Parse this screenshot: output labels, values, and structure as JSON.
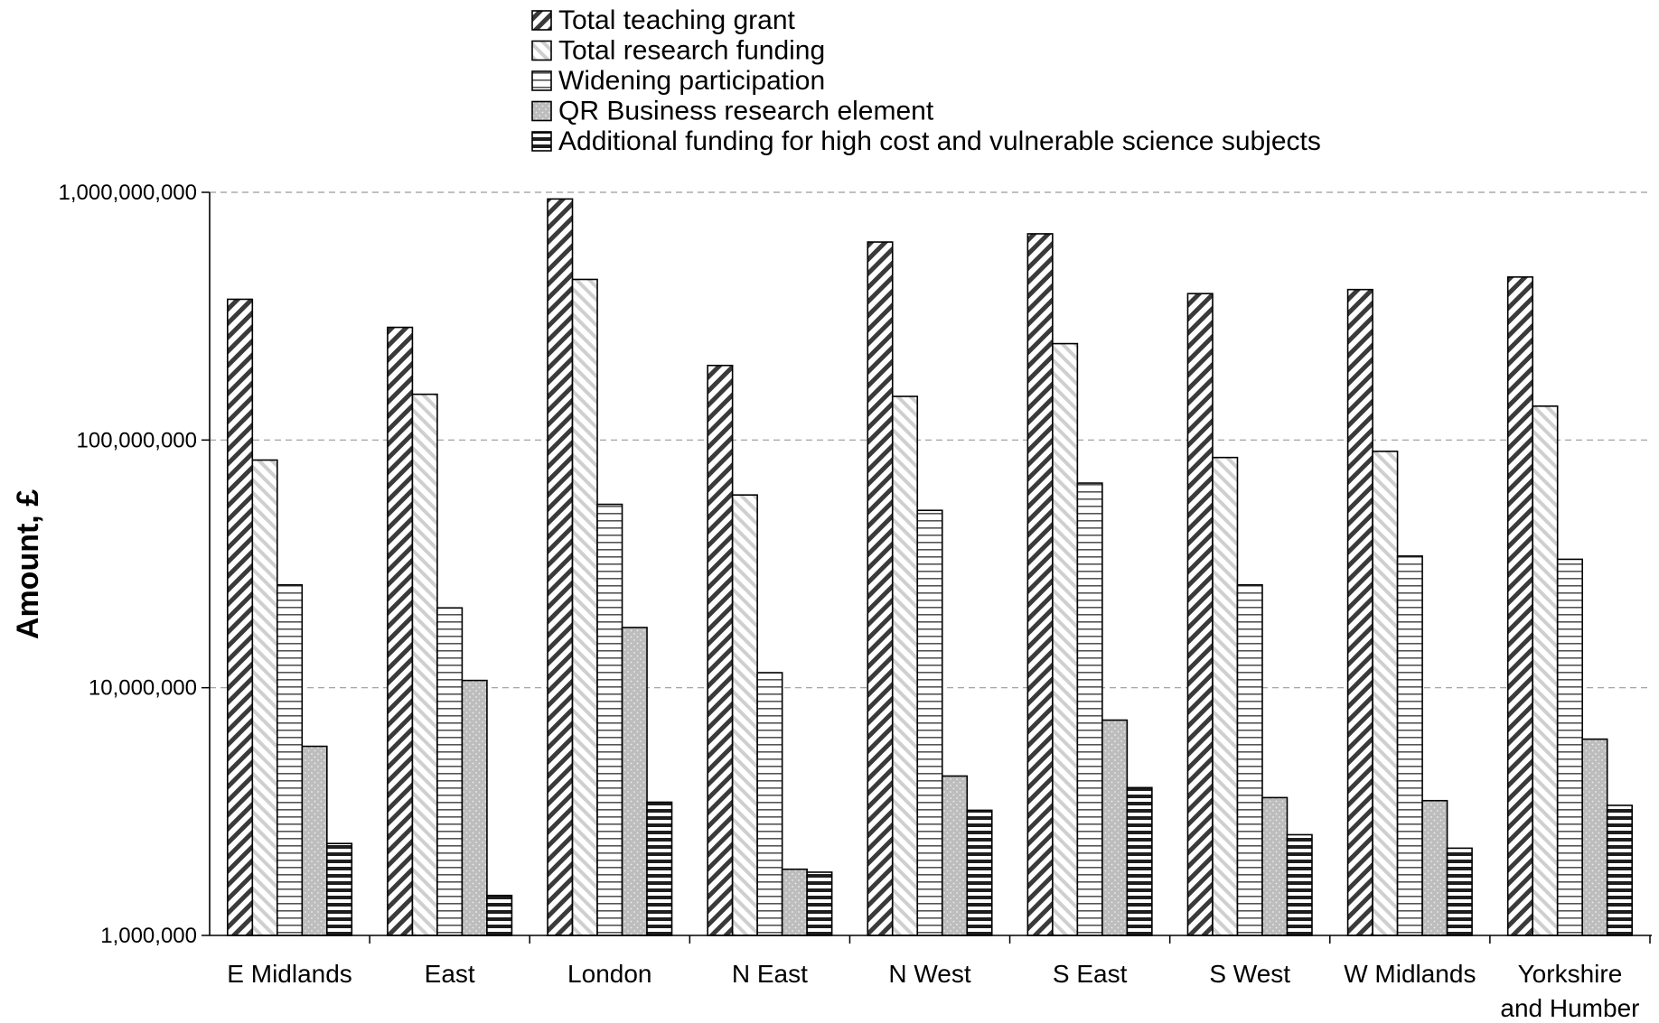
{
  "chart_data": {
    "type": "bar",
    "ylabel": "Amount, £",
    "yscale": "log",
    "ylim": [
      1000000,
      1000000000
    ],
    "yticks": [
      {
        "value": 1000000,
        "label": "1,000,000"
      },
      {
        "value": 10000000,
        "label": "10,000,000"
      },
      {
        "value": 100000000,
        "label": "100,000,000"
      },
      {
        "value": 1000000000,
        "label": "1,000,000,000"
      }
    ],
    "grid": "horizontal dashed",
    "legend_position": "top",
    "categories": [
      [
        "E Midlands"
      ],
      [
        "East"
      ],
      [
        "London"
      ],
      [
        "N East"
      ],
      [
        "N West"
      ],
      [
        "S East"
      ],
      [
        "S West"
      ],
      [
        "W Midlands"
      ],
      [
        "Yorkshire",
        "and Humber"
      ]
    ],
    "series": [
      {
        "name": "Total teaching grant",
        "pattern": "dense-diagonal-dark",
        "values": [
          370000000,
          285000000,
          940000000,
          200000000,
          630000000,
          680000000,
          390000000,
          405000000,
          455000000
        ]
      },
      {
        "name": "Total research funding",
        "pattern": "light-diagonal",
        "values": [
          83000000,
          153000000,
          445000000,
          60000000,
          150000000,
          245000000,
          85000000,
          90000000,
          137000000
        ]
      },
      {
        "name": "Widening participation",
        "pattern": "horizontal-lines",
        "values": [
          26000000,
          21000000,
          55000000,
          11500000,
          52000000,
          67000000,
          26000000,
          34000000,
          33000000
        ]
      },
      {
        "name": "QR Business research element",
        "pattern": "gray-dots",
        "values": [
          5800000,
          10700000,
          17500000,
          1850000,
          4400000,
          7400000,
          3600000,
          3500000,
          6200000
        ]
      },
      {
        "name": "Additional funding for high cost and vulnerable science subjects",
        "pattern": "thick-horizontal-lines",
        "values": [
          2350000,
          1450000,
          3450000,
          1800000,
          3200000,
          3950000,
          2550000,
          2250000,
          3350000
        ]
      }
    ]
  }
}
